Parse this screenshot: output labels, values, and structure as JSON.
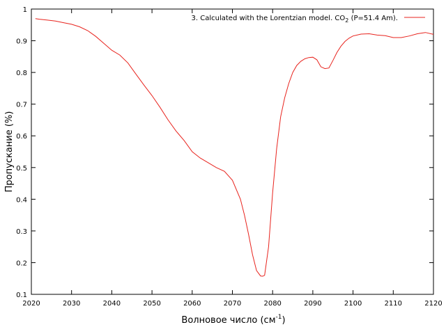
{
  "chart_data": {
    "type": "line",
    "xlabel": "Волновое число (см",
    "xlabel_superscript": "-1",
    "xlabel_suffix": ")",
    "ylabel": "Пропускание (%)",
    "xlim": [
      2020,
      2120
    ],
    "ylim": [
      0.1,
      1
    ],
    "xticks": [
      2020,
      2030,
      2040,
      2050,
      2060,
      2070,
      2080,
      2090,
      2100,
      2110,
      2120
    ],
    "yticks": [
      0.1,
      0.2,
      0.3,
      0.4,
      0.5,
      0.6,
      0.7,
      0.8,
      0.9,
      1
    ],
    "grid": false,
    "legend_position": "top-right",
    "series": [
      {
        "legend_prefix": "3. Calculated with the Lorentzian model. CO",
        "legend_subscript": "2",
        "legend_suffix": " (P=51.4 Am).",
        "color": "#e8231d",
        "x": [
          2021,
          2022,
          2024,
          2026,
          2028,
          2030,
          2032,
          2034,
          2036,
          2038,
          2040,
          2042,
          2044,
          2046,
          2048,
          2050,
          2052,
          2054,
          2056,
          2058,
          2060,
          2062,
          2064,
          2066,
          2068,
          2070,
          2072,
          2073,
          2074,
          2075,
          2076,
          2077,
          2077.5,
          2078,
          2079,
          2080,
          2081,
          2082,
          2083,
          2084,
          2085,
          2086,
          2087,
          2088,
          2089,
          2090,
          2091,
          2092,
          2093,
          2094,
          2095,
          2096,
          2097,
          2098,
          2099,
          2100,
          2102,
          2104,
          2106,
          2108,
          2110,
          2112,
          2114,
          2116,
          2118,
          2120
        ],
        "y": [
          0.97,
          0.968,
          0.965,
          0.962,
          0.957,
          0.952,
          0.944,
          0.932,
          0.914,
          0.892,
          0.87,
          0.855,
          0.83,
          0.795,
          0.76,
          0.727,
          0.69,
          0.65,
          0.615,
          0.585,
          0.55,
          0.53,
          0.515,
          0.5,
          0.488,
          0.46,
          0.4,
          0.35,
          0.29,
          0.225,
          0.175,
          0.158,
          0.157,
          0.16,
          0.25,
          0.42,
          0.56,
          0.66,
          0.72,
          0.765,
          0.8,
          0.822,
          0.835,
          0.843,
          0.847,
          0.848,
          0.84,
          0.818,
          0.812,
          0.814,
          0.838,
          0.863,
          0.883,
          0.898,
          0.908,
          0.915,
          0.921,
          0.922,
          0.918,
          0.916,
          0.91,
          0.91,
          0.915,
          0.922,
          0.926,
          0.92
        ]
      }
    ]
  }
}
